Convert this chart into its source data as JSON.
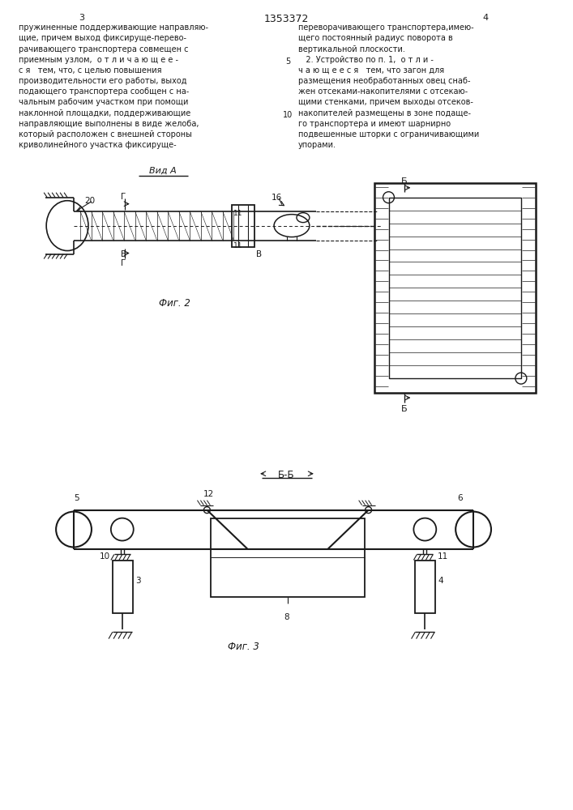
{
  "page_width": 7.07,
  "page_height": 10.0,
  "bg_color": "#ffffff",
  "text_color": "#1a1a1a",
  "line_color": "#1a1a1a",
  "page_num_left": "3",
  "page_num_center": "1353372",
  "page_num_right": "4",
  "col1_text": [
    "пружиненные поддерживающие направляю-",
    "щие, причем выход фиксируще-перево-",
    "рачивающего транспортера совмещен с",
    "приемным узлом,  о т л и ч а ю щ е е -",
    "с я   тем, что, с целью повышения",
    "производительности его работы, выход",
    "подающего транспортера сообщен с на-",
    "чальным рабочим участком при помощи",
    "наклонной площадки, поддерживающие",
    "направляющие выполнены в виде желоба,",
    "который расположен с внешней стороны",
    "криволинейного участка фиксируще-"
  ],
  "col2_text": [
    "переворачивающего транспортера,имею-",
    "щего постоянный радиус поворота в",
    "вертикальной плоскости.",
    "   2. Устройство по п. 1,  о т л и -",
    "ч а ю щ е е с я   тем, что загон для",
    "размещения необработанных овец снаб-",
    "жен отсеками-накопителями с отсекаю-",
    "щими стенками, причем выходы отсеков-",
    "накопителей размещены в зоне подаще-",
    "го транспортера и имеют шарнирно",
    "подвешенные шторки с ограничивающими",
    "упорами."
  ],
  "fig2_caption": "Фиг. 2",
  "fig3_caption": "Фиг. 3"
}
